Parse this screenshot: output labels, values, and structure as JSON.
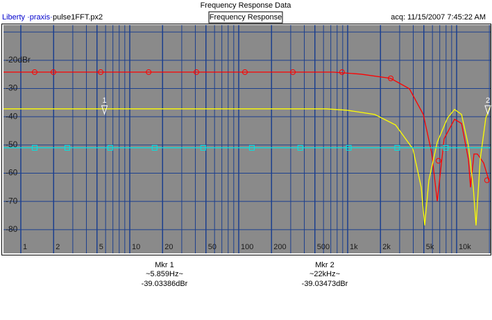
{
  "chart_data": {
    "type": "line",
    "title": "Frequency Response Data",
    "app_name": "Liberty ·praxis·",
    "file_name": "pulse1FFT.px2",
    "tab_label": "Frequency Response",
    "acquired": "acq: 11/15/2007 7:45:22 AM",
    "x_scale": "log",
    "xlim": [
      0.693,
      20510
    ],
    "ylim": [
      -88.4,
      -7.5
    ],
    "xticks": [
      1,
      2,
      5,
      10,
      20,
      50,
      100,
      200,
      500,
      {
        "value": 1000,
        "label": "1k"
      },
      {
        "value": 2000,
        "label": "2k"
      },
      {
        "value": 5000,
        "label": "5k"
      },
      {
        "value": 10000,
        "label": "10k"
      }
    ],
    "xminor_ticks": [
      3,
      4,
      6,
      7,
      8,
      9,
      30,
      40,
      60,
      70,
      80,
      90,
      300,
      400,
      600,
      700,
      800,
      900,
      3000,
      4000,
      6000,
      7000,
      8000,
      9000,
      20000
    ],
    "yticks": [
      {
        "value": -20,
        "label": "-20dBr"
      },
      -30,
      -40,
      -50,
      -60,
      -70,
      -80
    ],
    "yminor_ticks": [
      -10
    ],
    "grid": true,
    "grid_color": "#1b3f8f",
    "plot_color": "#8a8a8a",
    "series": [
      {
        "color": "#ff0000",
        "marker": "circle",
        "x": [
          0.693,
          735,
          1321,
          2483,
          3686,
          4946,
          5900,
          6636,
          7680,
          9570,
          11090,
          12830,
          13410,
          14430,
          15520,
          17710,
          19920
        ],
        "values": [
          -24.2,
          -24.2,
          -24.9,
          -26.4,
          -30.1,
          -39.2,
          -52.7,
          -69.9,
          -47.8,
          -40.9,
          -42.4,
          -55.1,
          -65.0,
          -53.2,
          -53.2,
          -56.4,
          -63.0
        ],
        "marker_points": {
          "x": [
            1.34,
            1.99,
            5.41,
            14.9,
            40.9,
            114,
            314,
            888,
            2483,
            6810,
            19000
          ],
          "values": [
            -24.2,
            -24.2,
            -24.2,
            -24.2,
            -24.2,
            -24.2,
            -24.2,
            -24.2,
            -26.4,
            -55.6,
            -62.5
          ]
        }
      },
      {
        "color": "#ffff00",
        "marker": "none",
        "x": [
          0.693,
          635,
          986,
          1771,
          2750,
          3970,
          4732,
          5093,
          5560,
          6636,
          8260,
          9570,
          11090,
          12830,
          14220,
          15070,
          16470,
          18530,
          20510
        ],
        "values": [
          -37.2,
          -37.2,
          -37.7,
          -39.2,
          -42.9,
          -51.4,
          -65.0,
          -78.5,
          -62.5,
          -49.0,
          -40.4,
          -37.4,
          -39.2,
          -50.2,
          -65.0,
          -78.5,
          -55.1,
          -40.4,
          -36.0
        ]
      },
      {
        "color": "#00e5e5",
        "marker": "square",
        "x": [
          0.693,
          20510
        ],
        "values": [
          -51.0,
          -51.0
        ],
        "marker_points": {
          "x": [
            1.34,
            2.67,
            6.62,
            16.9,
            47.2,
            132,
            367,
            1023,
            2848,
            7950
          ],
          "values": [
            -51.0,
            -51.0,
            -51.0,
            -51.0,
            -51.0,
            -51.0,
            -51.0,
            -51.0,
            -51.0,
            -51.0
          ]
        }
      }
    ],
    "markers": [
      {
        "label": "1",
        "title": "Mkr 1",
        "x": 5.859,
        "x_label": "~5.859Hz~",
        "value": -39.03386,
        "value_label": "-39.03386dBr"
      },
      {
        "label": "2",
        "title": "Mkr 2",
        "x": 22000,
        "x_label": "~22kHz~",
        "value": -39.03473,
        "value_label": "-39.03473dBr"
      }
    ]
  }
}
